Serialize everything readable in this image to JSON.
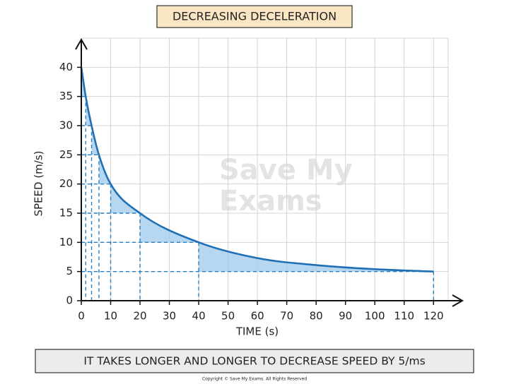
{
  "chart_data": {
    "type": "line",
    "title": "DECREASING DECELERATION",
    "x_label": "TIME (s)",
    "y_label": "SPEED (m/s)",
    "caption": "IT TAKES LONGER AND LONGER TO DECREASE SPEED BY 5/ms",
    "copyright": "Copyright © Save My Exams. All Rights Reserved",
    "watermark": [
      "Save My",
      "Exams"
    ],
    "x": [
      0,
      1.5,
      3.5,
      6,
      10,
      20,
      40,
      60,
      80,
      100,
      120
    ],
    "series": [
      {
        "name": "speed",
        "color": "#1f6fb5",
        "values": [
          40,
          35,
          30,
          25,
          20,
          15,
          10,
          7.3,
          6.1,
          5.4,
          5
        ]
      }
    ],
    "xlim": [
      0,
      125
    ],
    "ylim": [
      0,
      45
    ],
    "xticks": [
      0,
      10,
      20,
      30,
      40,
      50,
      60,
      70,
      80,
      90,
      100,
      110,
      120
    ],
    "yticks": [
      0,
      5,
      10,
      15,
      20,
      25,
      30,
      35,
      40
    ],
    "grid": true
  }
}
